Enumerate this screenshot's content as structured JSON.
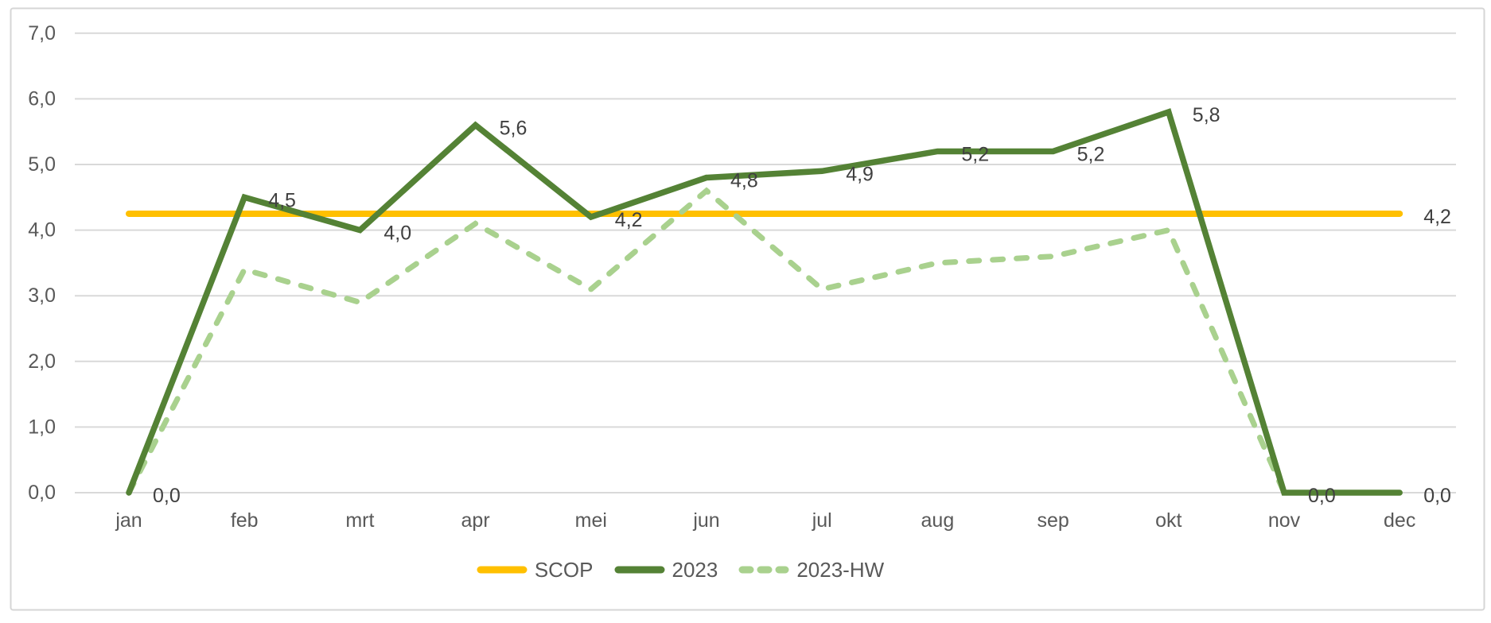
{
  "chart_data": {
    "type": "line",
    "title": "",
    "xlabel": "",
    "ylabel": "",
    "categories": [
      "jan",
      "feb",
      "mrt",
      "apr",
      "mei",
      "jun",
      "jul",
      "aug",
      "sep",
      "okt",
      "nov",
      "dec"
    ],
    "y_axis": {
      "min": 0,
      "max": 7,
      "step": 1,
      "tick_labels": [
        "0,0",
        "1,0",
        "2,0",
        "3,0",
        "4,0",
        "5,0",
        "6,0",
        "7,0"
      ]
    },
    "grid": true,
    "legend_position": "bottom",
    "series": [
      {
        "name": "SCOP",
        "color": "#FFC000",
        "line_style": "solid",
        "values": [
          4.25,
          4.25,
          4.25,
          4.25,
          4.25,
          4.25,
          4.25,
          4.25,
          4.25,
          4.25,
          4.25,
          4.25
        ],
        "end_label": "4,2"
      },
      {
        "name": "2023",
        "color": "#548235",
        "line_style": "solid",
        "values": [
          0.0,
          4.5,
          4.0,
          5.6,
          4.2,
          4.8,
          4.9,
          5.2,
          5.2,
          5.8,
          0.0,
          0.0
        ],
        "point_labels": [
          "0,0",
          "4,5",
          "4,0",
          "5,6",
          "4,2",
          "4,8",
          "4,9",
          "5,2",
          "5,2",
          "5,8",
          "0,0",
          "0,0"
        ]
      },
      {
        "name": "2023-HW",
        "color": "#A9D18E",
        "line_style": "dashed",
        "values": [
          0.0,
          3.4,
          2.9,
          4.1,
          3.1,
          4.6,
          3.1,
          3.5,
          3.6,
          4.0,
          0.0,
          0.0
        ]
      }
    ],
    "colors": {
      "gridline": "#D9D9D9",
      "chart_border": "#D6D6D6",
      "axis_text": "#595959",
      "data_label_text": "#404040",
      "background": "#FFFFFF"
    }
  }
}
